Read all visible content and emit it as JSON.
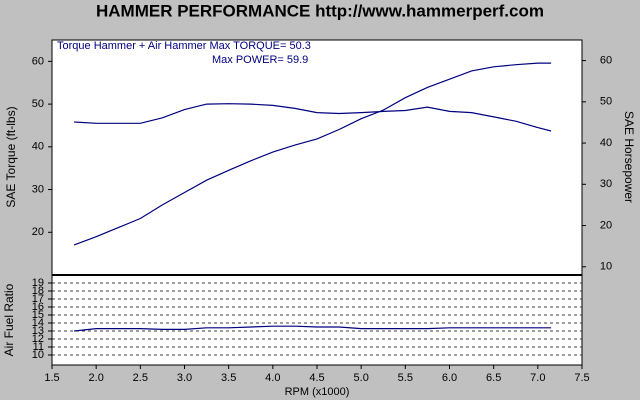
{
  "chart_data": [
    {
      "type": "line",
      "title": "HAMMER PERFORMANCE http://www.hammerperf.com",
      "annotations": [
        "Torque Hammer + Air Hammer  Max TORQUE= 50.3",
        "Max POWER= 59.9"
      ],
      "ylabel": "SAE Torque (ft-lbs)",
      "y2label": "SAE Horsepower",
      "x": [
        1.75,
        2.0,
        2.25,
        2.5,
        2.75,
        3.0,
        3.25,
        3.5,
        3.75,
        4.0,
        4.25,
        4.5,
        4.75,
        5.0,
        5.25,
        5.5,
        5.75,
        6.0,
        6.25,
        6.5,
        6.75,
        7.0,
        7.15
      ],
      "xlim": [
        1.5,
        7.5
      ],
      "ylim": [
        10,
        65
      ],
      "yticks": [
        20,
        30,
        40,
        50,
        60
      ],
      "y2lim": [
        8,
        65
      ],
      "y2ticks": [
        10,
        20,
        30,
        40,
        50,
        60
      ],
      "series": [
        {
          "color": "#000080",
          "values": [
            45.8,
            45.5,
            45.5,
            45.5,
            46.8,
            48.7,
            50.0,
            50.1,
            50.0,
            49.7,
            49.0,
            48.0,
            47.8,
            48.0,
            48.3,
            48.5,
            49.3,
            48.3,
            48.0,
            47.0,
            46.0,
            44.5,
            43.7
          ]
        },
        {
          "color": "#000080",
          "axis": "y2",
          "values": [
            15.3,
            17.3,
            19.5,
            21.7,
            25.0,
            28.0,
            31.0,
            33.4,
            35.7,
            37.8,
            39.5,
            41.0,
            43.3,
            45.9,
            48.0,
            51.0,
            53.5,
            55.5,
            57.5,
            58.5,
            59.0,
            59.4,
            59.4
          ]
        }
      ]
    },
    {
      "type": "line",
      "ylabel": "Air Fuel Ratio",
      "xlabel": "RPM (x1000)",
      "x": [
        1.75,
        2.0,
        2.25,
        2.5,
        2.75,
        3.0,
        3.25,
        3.5,
        3.75,
        4.0,
        4.25,
        4.5,
        4.75,
        5.0,
        5.25,
        5.5,
        5.75,
        6.0,
        6.25,
        6.5,
        6.75,
        7.0,
        7.15
      ],
      "xlim": [
        1.5,
        7.5
      ],
      "xticks": [
        1.5,
        {
          "value": 2,
          "label": "2.0"
        },
        2.5,
        {
          "value": 3,
          "label": "3.0"
        },
        3.5,
        {
          "value": 4,
          "label": "4.0"
        },
        4.5,
        {
          "value": 5,
          "label": "5.0"
        },
        5.5,
        {
          "value": 6,
          "label": "6.0"
        },
        6.5,
        {
          "value": 7,
          "label": "7.0"
        },
        7.5
      ],
      "ylim": [
        8.75,
        20
      ],
      "yticks": [
        10,
        11,
        12,
        13,
        14,
        15,
        16,
        17,
        18,
        19
      ],
      "grid": true,
      "series": [
        {
          "color": "#000080",
          "values": [
            13.0,
            13.3,
            13.3,
            13.3,
            13.2,
            13.2,
            13.4,
            13.4,
            13.5,
            13.6,
            13.6,
            13.5,
            13.5,
            13.3,
            13.3,
            13.3,
            13.3,
            13.4,
            13.4,
            13.4,
            13.4,
            13.4,
            13.4
          ]
        }
      ]
    }
  ]
}
